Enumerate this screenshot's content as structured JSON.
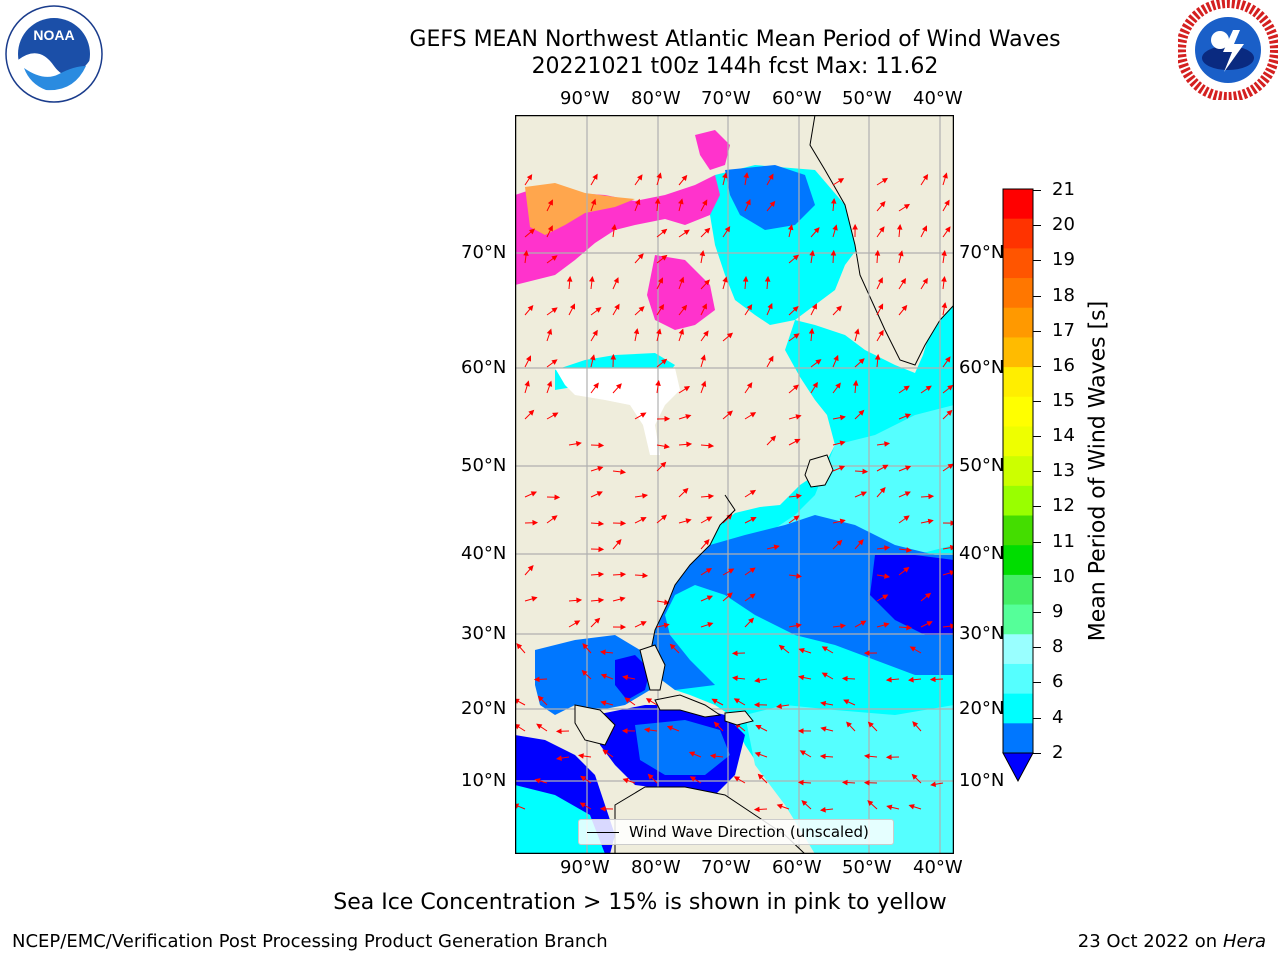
{
  "title_line1": "GEFS MEAN Northwest Atlantic Mean Period of Wind Waves",
  "title_line2": "20221021 t00z 144h fcst   Max: 11.62",
  "lon_labels": [
    "90°W",
    "80°W",
    "70°W",
    "60°W",
    "50°W",
    "40°W"
  ],
  "lat_labels": [
    "70°N",
    "60°N",
    "50°N",
    "40°N",
    "30°N",
    "20°N",
    "10°N"
  ],
  "legend_label": "Wind Wave Direction (unscaled)",
  "colorbar": {
    "title": "Mean Period of Wind Waves [s]",
    "ticks": [
      "21",
      "20",
      "19",
      "18",
      "17",
      "16",
      "15",
      "14",
      "13",
      "12",
      "11",
      "10",
      "9",
      "8",
      "6",
      "4",
      "2"
    ],
    "colors": [
      "#ff0000",
      "#ff3300",
      "#ff5500",
      "#ff7700",
      "#ff9900",
      "#ffbb00",
      "#ffee00",
      "#ffff00",
      "#eeff00",
      "#ccff00",
      "#99ff00",
      "#44dd00",
      "#00dd00",
      "#44ee66",
      "#55ff99",
      "#99ffff",
      "#55ffff",
      "#00ffff",
      "#0077ff"
    ],
    "under_color": "#0000ff"
  },
  "map_colors": {
    "land": "#efeddc",
    "grid": "#b0b0b0",
    "ocean_dark": "#0000ff",
    "ocean_mid": "#0077ff",
    "ocean_light": "#00ffff",
    "ocean_pale": "#55ffff",
    "ice_pink": "#ff33cc",
    "ice_orange": "#ffa64d",
    "arrows": "#ff0000"
  },
  "caption": "Sea Ice Concentration > 15% is shown in pink to yellow",
  "footer_left": "NCEP/EMC/Verification Post Processing Product Generation Branch",
  "footer_date": "23 Oct 2022 on",
  "footer_host": "Hera"
}
